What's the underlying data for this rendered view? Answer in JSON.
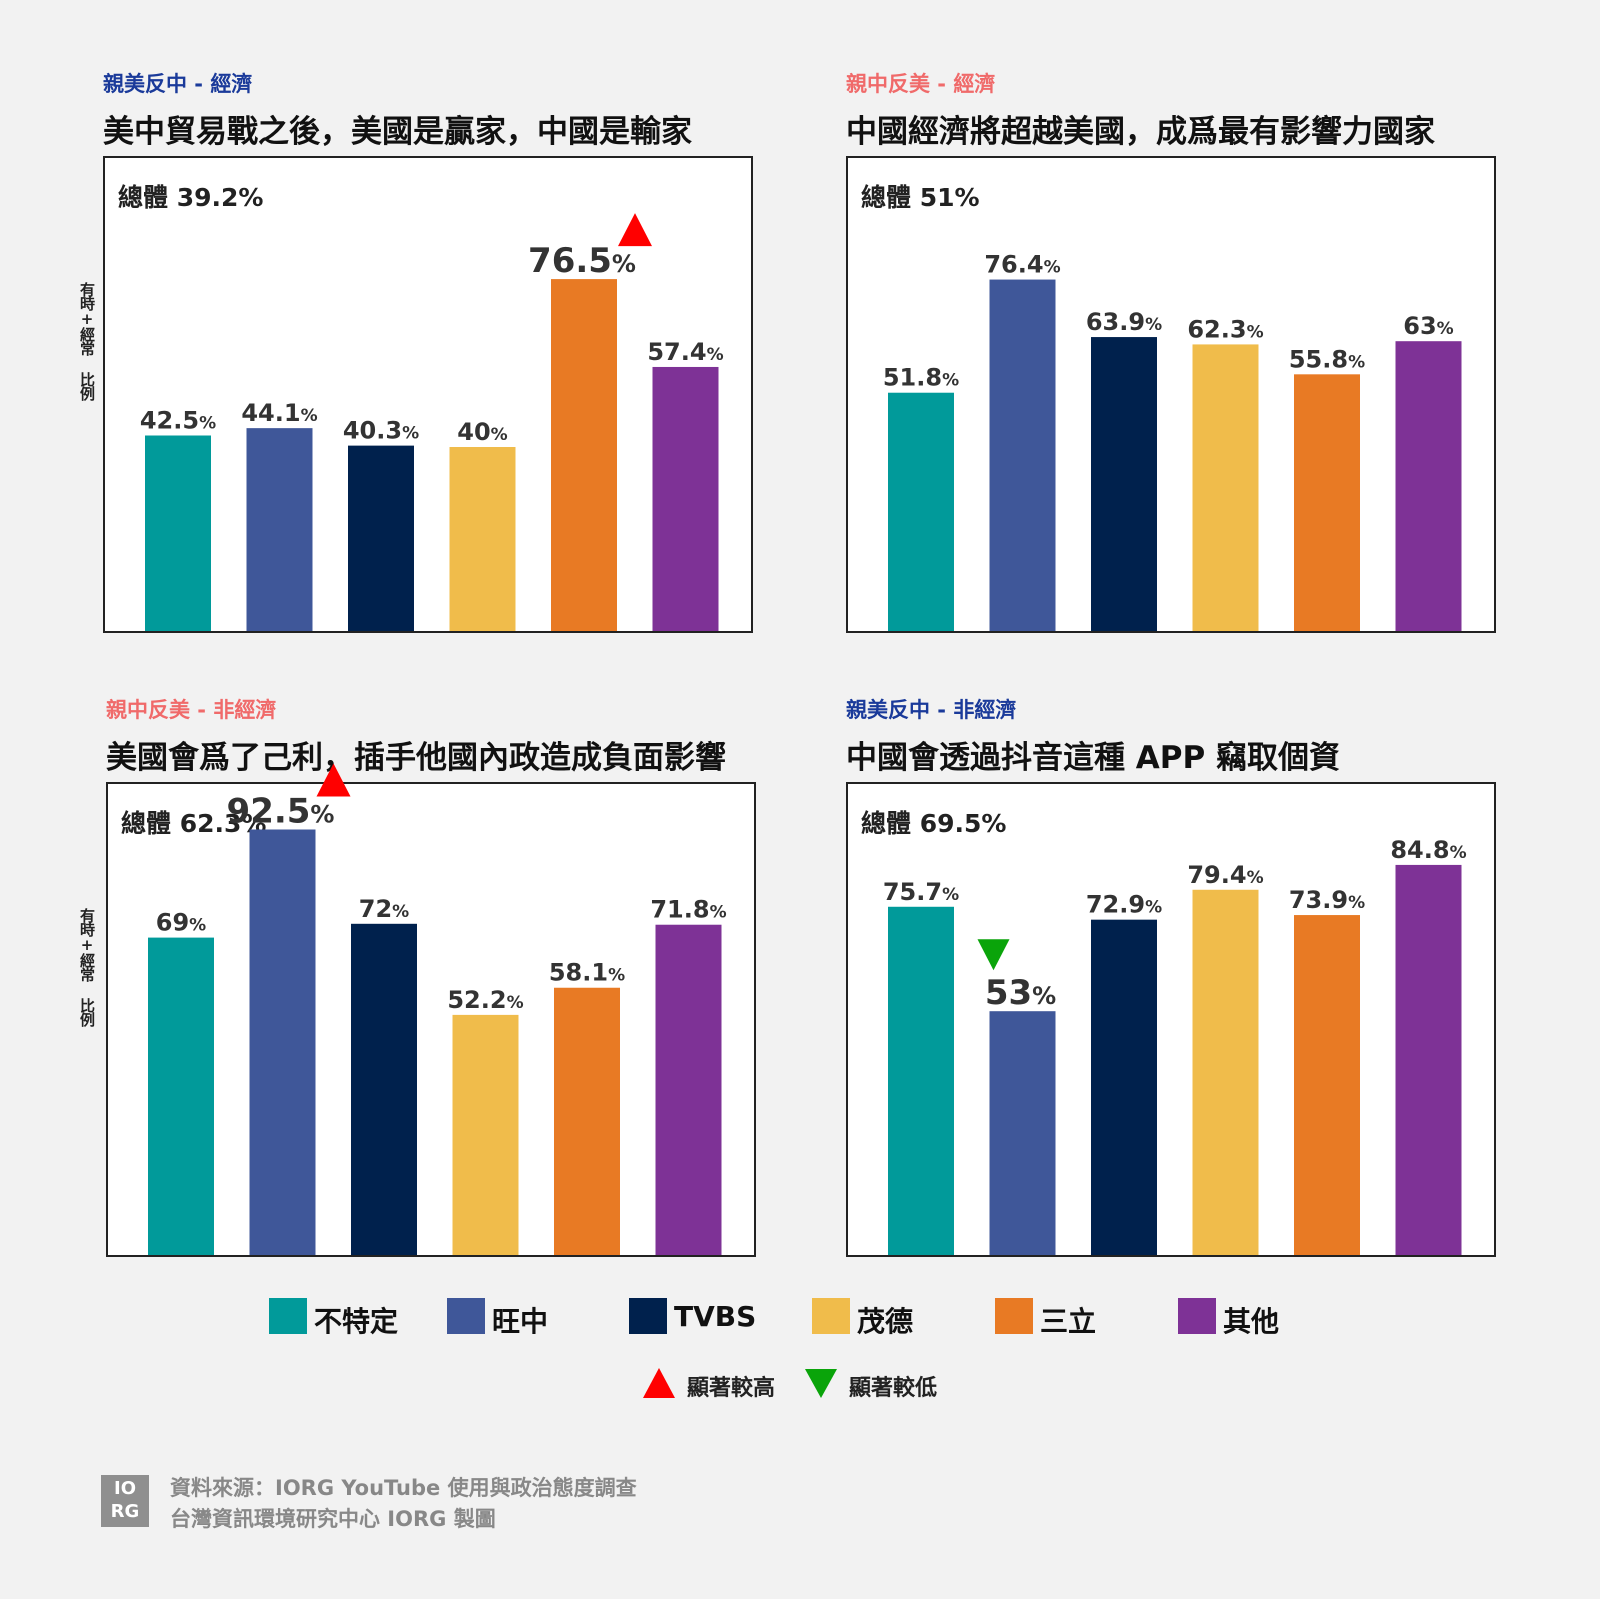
{
  "colors": {
    "不特定": "#019a9a",
    "旺中": "#3f5799",
    "TVBS": "#00214d",
    "茂德": "#f0bc4b",
    "三立": "#e87a24",
    "其他": "#7e3296",
    "tag_blue": "#1a3a9a",
    "tag_pink": "#f06a6a",
    "sig_high": "#ff0000",
    "sig_low": "#0aa40a"
  },
  "y_axis_label": "有時+經常 比例",
  "chart_data": [
    {
      "type": "bar",
      "tag": "親美反中 - 經濟",
      "tag_color": "blue",
      "title": "美中貿易戰之後，美國是贏家，中國是輸家",
      "total": "總體 39.2%",
      "ylim": [
        0,
        100
      ],
      "categories": [
        "不特定",
        "旺中",
        "TVBS",
        "茂德",
        "三立",
        "其他"
      ],
      "values": [
        42.5,
        44.1,
        40.3,
        40,
        76.5,
        57.4
      ],
      "labels": [
        "42.5",
        "44.1",
        "40.3",
        "40",
        "76.5",
        "57.4"
      ],
      "significance": [
        "",
        "",
        "",
        "",
        "high",
        ""
      ]
    },
    {
      "type": "bar",
      "tag": "親中反美 - 經濟",
      "tag_color": "pink",
      "title": "中國經濟將超越美國，成爲最有影響力國家",
      "total": "總體 51%",
      "ylim": [
        0,
        100
      ],
      "categories": [
        "不特定",
        "旺中",
        "TVBS",
        "茂德",
        "三立",
        "其他"
      ],
      "values": [
        51.8,
        76.4,
        63.9,
        62.3,
        55.8,
        63
      ],
      "labels": [
        "51.8",
        "76.4",
        "63.9",
        "62.3",
        "55.8",
        "63"
      ],
      "significance": [
        "",
        "",
        "",
        "",
        "",
        ""
      ]
    },
    {
      "type": "bar",
      "tag": "親中反美 - 非經濟",
      "tag_color": "pink",
      "title": "美國會爲了己利，插手他國內政造成負面影響",
      "total": "總體 62.3%",
      "ylim": [
        0,
        100
      ],
      "categories": [
        "不特定",
        "旺中",
        "TVBS",
        "茂德",
        "三立",
        "其他"
      ],
      "values": [
        69,
        92.5,
        72,
        52.2,
        58.1,
        71.8
      ],
      "labels": [
        "69",
        "92.5",
        "72",
        "52.2",
        "58.1",
        "71.8"
      ],
      "significance": [
        "",
        "high",
        "",
        "",
        "",
        ""
      ]
    },
    {
      "type": "bar",
      "tag": "親美反中 - 非經濟",
      "tag_color": "blue",
      "title": "中國會透過抖音這種 APP 竊取個資",
      "total": "總體 69.5%",
      "ylim": [
        0,
        100
      ],
      "categories": [
        "不特定",
        "旺中",
        "TVBS",
        "茂德",
        "三立",
        "其他"
      ],
      "values": [
        75.7,
        53,
        72.9,
        79.4,
        73.9,
        84.8
      ],
      "labels": [
        "75.7",
        "53",
        "72.9",
        "79.4",
        "73.9",
        "84.8"
      ],
      "significance": [
        "",
        "low",
        "",
        "",
        "",
        ""
      ]
    }
  ],
  "legend": {
    "items": [
      "不特定",
      "旺中",
      "TVBS",
      "茂德",
      "三立",
      "其他"
    ],
    "sig_high_label": "顯著較高",
    "sig_low_label": "顯著較低"
  },
  "footer": {
    "logo_line1": "IO",
    "logo_line2": "RG",
    "source": "資料來源：IORG YouTube 使用與政治態度調查",
    "credit": "台灣資訊環境研究中心 IORG 製圖"
  }
}
